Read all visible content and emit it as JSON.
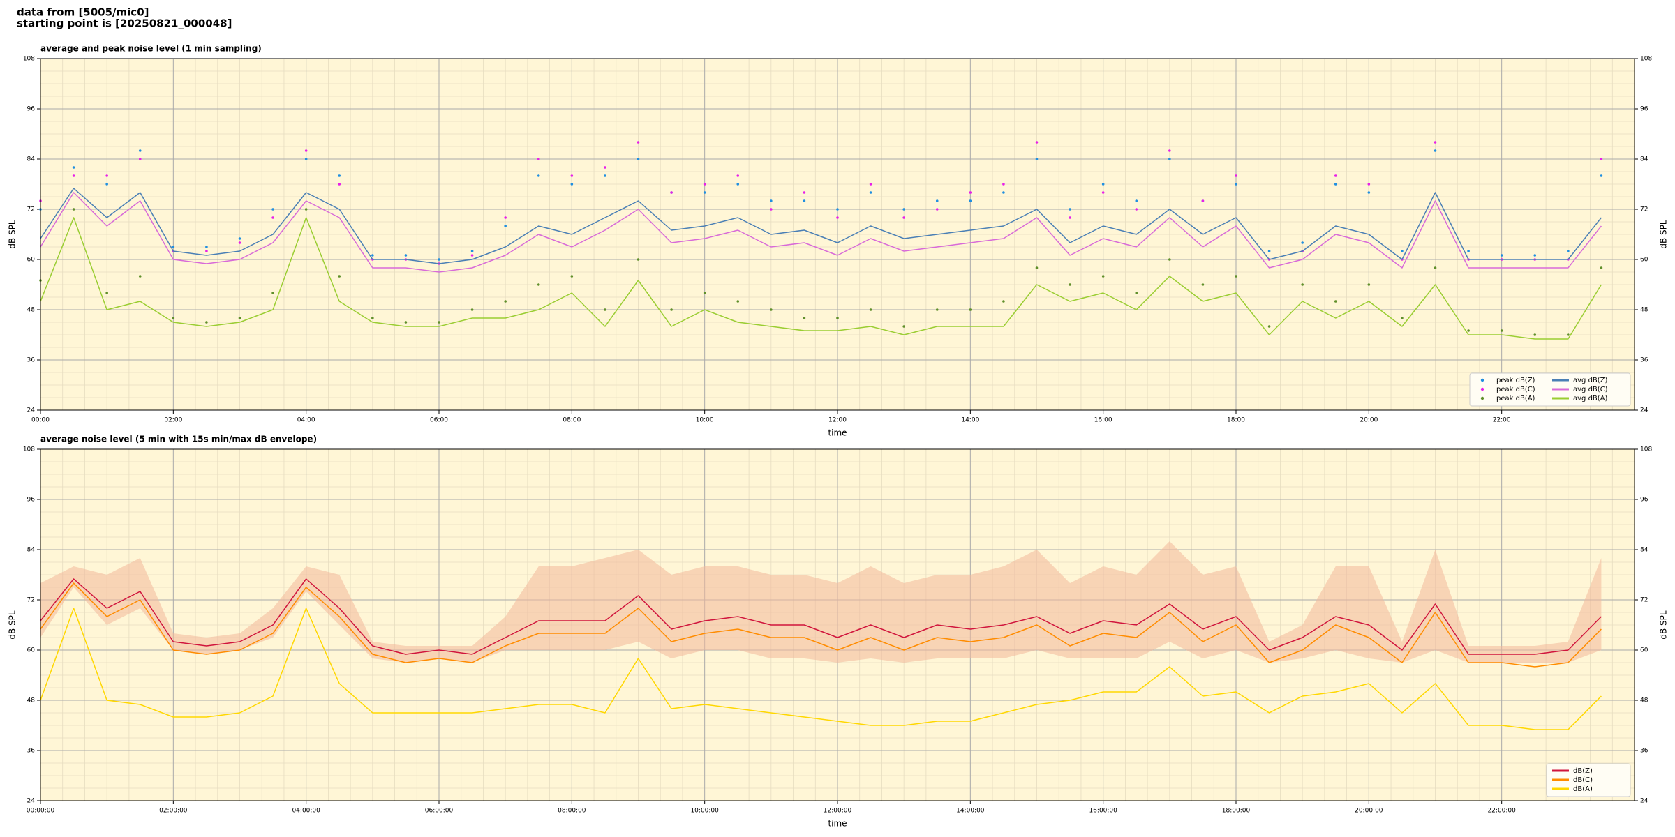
{
  "header": {
    "line1": "data from [5005/mic0]",
    "line2": "starting point is [20250821_000048]"
  },
  "chart_data": [
    {
      "type": "line",
      "title": "average and peak noise level (1 min sampling)",
      "xlabel": "time",
      "ylabel": "dB SPL",
      "xlim": [
        0,
        24
      ],
      "xticks": [
        {
          "value": 0,
          "label": "00:00"
        },
        {
          "value": 2,
          "label": "02:00"
        },
        {
          "value": 4,
          "label": "04:00"
        },
        {
          "value": 6,
          "label": "06:00"
        },
        {
          "value": 8,
          "label": "08:00"
        },
        {
          "value": 10,
          "label": "10:00"
        },
        {
          "value": 12,
          "label": "12:00"
        },
        {
          "value": 14,
          "label": "14:00"
        },
        {
          "value": 16,
          "label": "16:00"
        },
        {
          "value": 18,
          "label": "18:00"
        },
        {
          "value": 20,
          "label": "20:00"
        },
        {
          "value": 22,
          "label": "22:00"
        }
      ],
      "ylim": [
        24,
        108
      ],
      "yticks": [
        24,
        36,
        48,
        60,
        72,
        84,
        96,
        108
      ],
      "grid": true,
      "legend": "lower right",
      "legend_columns": 2,
      "x": [
        0,
        0.5,
        1,
        1.5,
        2,
        2.5,
        3,
        3.5,
        4,
        4.5,
        5,
        5.5,
        6,
        6.5,
        7,
        7.5,
        8,
        8.5,
        9,
        9.5,
        10,
        10.5,
        11,
        11.5,
        12,
        12.5,
        13,
        13.5,
        14,
        14.5,
        15,
        15.5,
        16,
        16.5,
        17,
        17.5,
        18,
        18.5,
        19,
        19.5,
        20,
        20.5,
        21,
        21.5,
        22,
        22.5,
        23,
        23.5
      ],
      "series": [
        {
          "name": "peak dB(Z)",
          "type": "scatter",
          "color": "#1f8fe0",
          "values": [
            72,
            82,
            78,
            86,
            63,
            63,
            65,
            72,
            84,
            80,
            61,
            61,
            60,
            62,
            68,
            80,
            78,
            80,
            84,
            76,
            76,
            78,
            74,
            74,
            72,
            76,
            72,
            74,
            74,
            76,
            84,
            72,
            78,
            74,
            84,
            74,
            78,
            62,
            64,
            78,
            76,
            62,
            86,
            62,
            61,
            61,
            62,
            80
          ]
        },
        {
          "name": "peak dB(C)",
          "type": "scatter",
          "color": "#e81fe8",
          "values": [
            74,
            80,
            80,
            84,
            62,
            62,
            64,
            70,
            86,
            78,
            60,
            60,
            59,
            61,
            70,
            84,
            80,
            82,
            88,
            76,
            78,
            80,
            72,
            76,
            70,
            78,
            70,
            72,
            76,
            78,
            88,
            70,
            76,
            72,
            86,
            74,
            80,
            60,
            62,
            80,
            78,
            60,
            88,
            60,
            60,
            60,
            60,
            84
          ]
        },
        {
          "name": "peak dB(A)",
          "type": "scatter",
          "color": "#5f8f2a",
          "values": [
            55,
            72,
            52,
            56,
            46,
            45,
            46,
            52,
            72,
            56,
            46,
            45,
            45,
            48,
            50,
            54,
            56,
            48,
            60,
            48,
            52,
            50,
            48,
            46,
            46,
            48,
            44,
            48,
            48,
            50,
            58,
            54,
            56,
            52,
            60,
            54,
            56,
            44,
            54,
            50,
            54,
            46,
            58,
            43,
            43,
            42,
            42,
            58
          ]
        },
        {
          "name": "avg dB(Z)",
          "type": "line",
          "color": "#4a7fb5",
          "values": [
            65,
            77,
            70,
            76,
            62,
            61,
            62,
            66,
            76,
            72,
            60,
            60,
            59,
            60,
            63,
            68,
            66,
            70,
            74,
            67,
            68,
            70,
            66,
            67,
            64,
            68,
            65,
            66,
            67,
            68,
            72,
            64,
            68,
            66,
            72,
            66,
            70,
            60,
            62,
            68,
            66,
            60,
            76,
            60,
            60,
            60,
            60,
            70
          ]
        },
        {
          "name": "avg dB(C)",
          "type": "line",
          "color": "#d86ad8",
          "values": [
            63,
            76,
            68,
            74,
            60,
            59,
            60,
            64,
            74,
            70,
            58,
            58,
            57,
            58,
            61,
            66,
            63,
            67,
            72,
            64,
            65,
            67,
            63,
            64,
            61,
            65,
            62,
            63,
            64,
            65,
            70,
            61,
            65,
            63,
            70,
            63,
            68,
            58,
            60,
            66,
            64,
            58,
            74,
            58,
            58,
            58,
            58,
            68
          ]
        },
        {
          "name": "avg dB(A)",
          "type": "line",
          "color": "#9acd32",
          "values": [
            50,
            70,
            48,
            50,
            45,
            44,
            45,
            48,
            70,
            50,
            45,
            44,
            44,
            46,
            46,
            48,
            52,
            44,
            55,
            44,
            48,
            45,
            44,
            43,
            43,
            44,
            42,
            44,
            44,
            44,
            54,
            50,
            52,
            48,
            56,
            50,
            52,
            42,
            50,
            46,
            50,
            44,
            54,
            42,
            42,
            41,
            41,
            54
          ]
        }
      ]
    },
    {
      "type": "line",
      "title": "average noise level (5 min with 15s min/max dB envelope)",
      "xlabel": "time",
      "ylabel": "dB SPL",
      "xlim": [
        0,
        24
      ],
      "xticks": [
        {
          "value": 0,
          "label": "00:00:00"
        },
        {
          "value": 2,
          "label": "02:00:00"
        },
        {
          "value": 4,
          "label": "04:00:00"
        },
        {
          "value": 6,
          "label": "06:00:00"
        },
        {
          "value": 8,
          "label": "08:00:00"
        },
        {
          "value": 10,
          "label": "10:00:00"
        },
        {
          "value": 12,
          "label": "12:00:00"
        },
        {
          "value": 14,
          "label": "14:00:00"
        },
        {
          "value": 16,
          "label": "16:00:00"
        },
        {
          "value": 18,
          "label": "18:00:00"
        },
        {
          "value": 20,
          "label": "20:00:00"
        },
        {
          "value": 22,
          "label": "22:00:00"
        }
      ],
      "ylim": [
        24,
        108
      ],
      "yticks": [
        24,
        36,
        48,
        60,
        72,
        84,
        96,
        108
      ],
      "grid": true,
      "legend": "lower right",
      "legend_columns": 1,
      "x": [
        0,
        0.5,
        1,
        1.5,
        2,
        2.5,
        3,
        3.5,
        4,
        4.5,
        5,
        5.5,
        6,
        6.5,
        7,
        7.5,
        8,
        8.5,
        9,
        9.5,
        10,
        10.5,
        11,
        11.5,
        12,
        12.5,
        13,
        13.5,
        14,
        14.5,
        15,
        15.5,
        16,
        16.5,
        17,
        17.5,
        18,
        18.5,
        19,
        19.5,
        20,
        20.5,
        21,
        21.5,
        22,
        22.5,
        23,
        23.5
      ],
      "envelope": {
        "color": "#f2b89a",
        "max": [
          76,
          80,
          78,
          82,
          64,
          63,
          64,
          70,
          80,
          78,
          62,
          61,
          61,
          61,
          68,
          80,
          80,
          82,
          84,
          78,
          80,
          80,
          78,
          78,
          76,
          80,
          76,
          78,
          78,
          80,
          84,
          76,
          80,
          78,
          86,
          78,
          80,
          62,
          66,
          80,
          80,
          62,
          84,
          61,
          61,
          61,
          62,
          82
        ],
        "min": [
          63,
          75,
          66,
          70,
          60,
          59,
          60,
          63,
          74,
          66,
          58,
          57,
          58,
          57,
          60,
          60,
          60,
          60,
          62,
          58,
          60,
          60,
          58,
          58,
          57,
          58,
          57,
          58,
          58,
          58,
          60,
          58,
          58,
          58,
          62,
          58,
          60,
          57,
          58,
          60,
          58,
          57,
          60,
          57,
          57,
          57,
          57,
          60
        ]
      },
      "series": [
        {
          "name": "dB(Z)",
          "type": "line",
          "color": "#d0143c",
          "values": [
            67,
            77,
            70,
            74,
            62,
            61,
            62,
            66,
            77,
            70,
            61,
            59,
            60,
            59,
            63,
            67,
            67,
            67,
            73,
            65,
            67,
            68,
            66,
            66,
            63,
            66,
            63,
            66,
            65,
            66,
            68,
            64,
            67,
            66,
            71,
            65,
            68,
            60,
            63,
            68,
            66,
            60,
            71,
            59,
            59,
            59,
            60,
            68
          ]
        },
        {
          "name": "dB(C)",
          "type": "line",
          "color": "#ff8c00",
          "values": [
            65,
            76,
            68,
            72,
            60,
            59,
            60,
            64,
            75,
            68,
            59,
            57,
            58,
            57,
            61,
            64,
            64,
            64,
            70,
            62,
            64,
            65,
            63,
            63,
            60,
            63,
            60,
            63,
            62,
            63,
            66,
            61,
            64,
            63,
            69,
            62,
            66,
            57,
            60,
            66,
            63,
            57,
            69,
            57,
            57,
            56,
            57,
            65
          ]
        },
        {
          "name": "dB(A)",
          "type": "line",
          "color": "#ffd700",
          "values": [
            48,
            70,
            48,
            47,
            44,
            44,
            45,
            49,
            70,
            52,
            45,
            45,
            45,
            45,
            46,
            47,
            47,
            45,
            58,
            46,
            47,
            46,
            45,
            44,
            43,
            42,
            42,
            43,
            43,
            45,
            47,
            48,
            50,
            50,
            56,
            49,
            50,
            45,
            49,
            50,
            52,
            45,
            52,
            42,
            42,
            41,
            41,
            49
          ]
        }
      ]
    }
  ]
}
